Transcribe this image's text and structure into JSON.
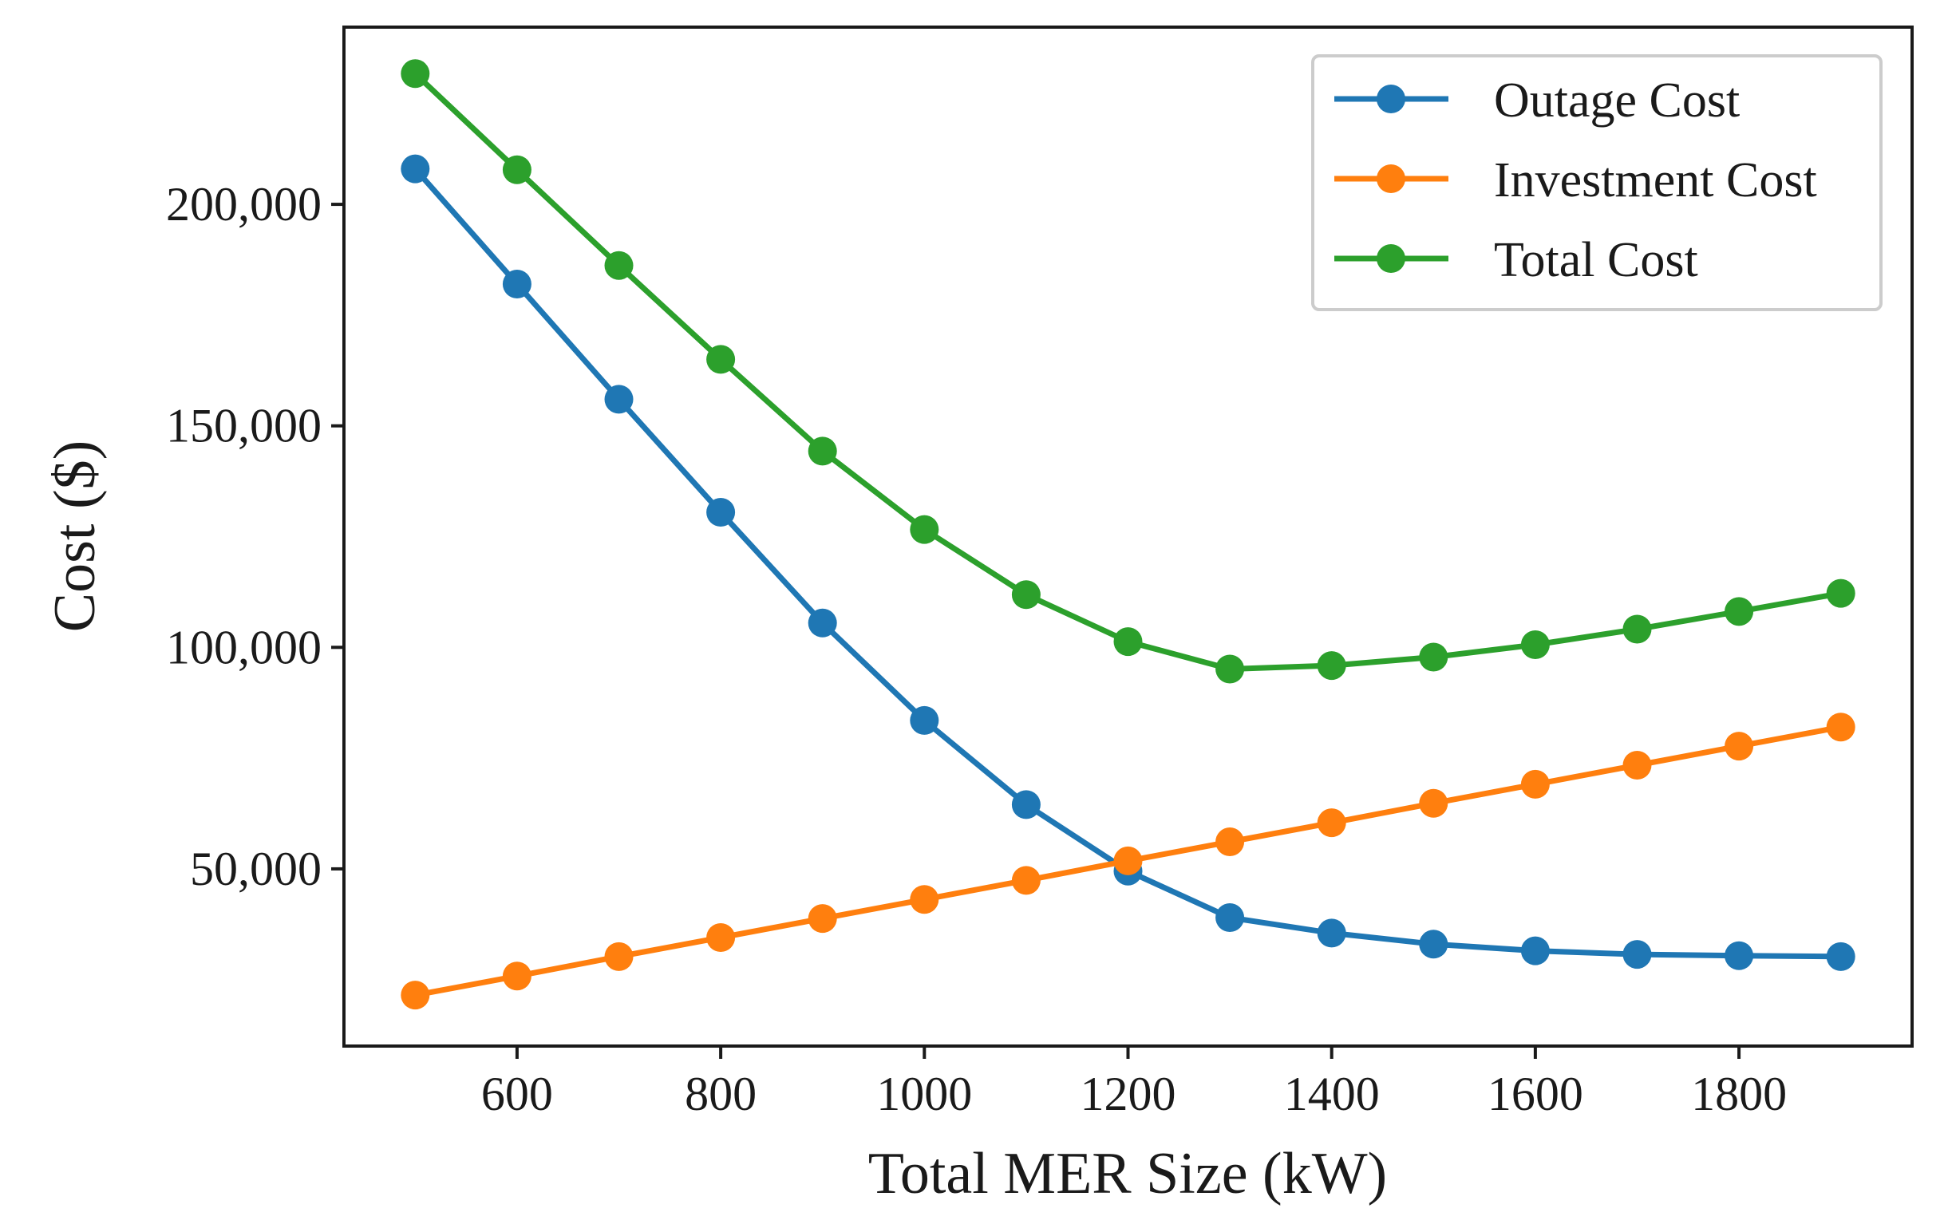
{
  "chart_data": {
    "type": "line",
    "title": "",
    "xlabel": "Total MER Size (kW)",
    "ylabel": "Cost ($)",
    "x": [
      500,
      600,
      700,
      800,
      900,
      1000,
      1100,
      1200,
      1300,
      1400,
      1500,
      1600,
      1700,
      1800,
      1900
    ],
    "xlim": [
      430,
      1970
    ],
    "ylim": [
      10000,
      240000
    ],
    "xticks": [
      600,
      800,
      1000,
      1200,
      1400,
      1600,
      1800
    ],
    "xtick_labels": [
      "600",
      "800",
      "1000",
      "1200",
      "1400",
      "1600",
      "1800"
    ],
    "yticks": [
      50000,
      100000,
      150000,
      200000
    ],
    "ytick_labels": [
      "50,000",
      "100,000",
      "150,000",
      "200,000"
    ],
    "grid": false,
    "legend_position": "top-right",
    "series": [
      {
        "name": "Outage Cost",
        "color": "#1f77b4",
        "values": [
          208000,
          182000,
          156000,
          130500,
          105500,
          83500,
          64500,
          49500,
          39000,
          35500,
          33000,
          31500,
          30700,
          30400,
          30200
        ]
      },
      {
        "name": "Investment Cost",
        "color": "#ff7f0e",
        "values": [
          21500,
          25800,
          30200,
          34500,
          38800,
          43100,
          47400,
          51800,
          56100,
          60400,
          64800,
          69100,
          73400,
          77700,
          82000
        ]
      },
      {
        "name": "Total Cost",
        "color": "#2ca02c",
        "values": [
          229500,
          207800,
          186200,
          165000,
          144300,
          126600,
          111900,
          101300,
          95100,
          95900,
          97800,
          100600,
          104100,
          108100,
          112200
        ]
      }
    ]
  }
}
